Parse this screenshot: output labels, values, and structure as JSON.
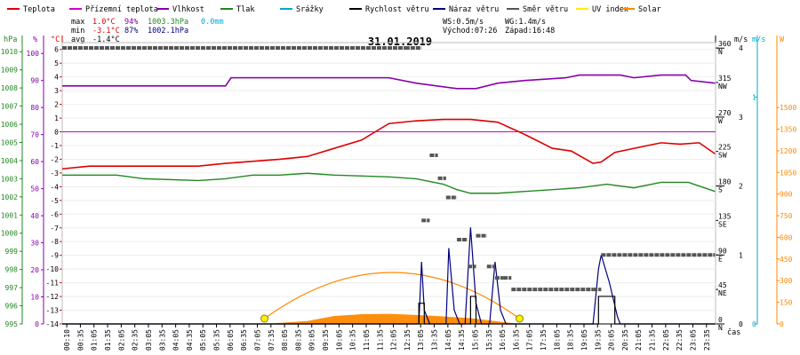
{
  "legend": [
    {
      "label": "Teplota",
      "color": "#dd0000"
    },
    {
      "label": "Přízemní teplota",
      "color": "#cc00cc"
    },
    {
      "label": "Vlhkost",
      "color": "#8800aa"
    },
    {
      "label": "Tlak",
      "color": "#228822"
    },
    {
      "label": "Srážky",
      "color": "#00aacc"
    },
    {
      "label": "Rychlost větru",
      "color": "#000000"
    },
    {
      "label": "Náraz větru",
      "color": "#000080"
    },
    {
      "label": "Směr větru",
      "color": "#555555"
    },
    {
      "label": "UV index",
      "color": "#ffee00"
    },
    {
      "label": "Solar",
      "color": "#ff8800"
    }
  ],
  "stats": {
    "max_label": "max",
    "max_temp": "1.0°C",
    "max_hum": "94%",
    "max_press": "1003.3hPa",
    "rain": "0.0mm",
    "min_label": "min",
    "min_temp": "-3.1°C",
    "min_hum": "87%",
    "min_press": "1002.1hPa",
    "avg_label": "avg",
    "avg_temp": "-1.4°C",
    "ws": "WS:0.5m/s",
    "wg": "WG:1.4m/s",
    "sunrise": "Východ:07:26",
    "sunset": "Západ:16:48"
  },
  "date": "31.01.2019",
  "axis_units": {
    "hpa": "hPa",
    "pct": "%",
    "deg": "°C",
    "ms1": "m/s",
    "ms2": "m/s",
    "w": "W",
    "cas": "čas"
  },
  "chart_data": {
    "type": "line",
    "title": "31.01.2019",
    "xlabel": "čas",
    "x_ticks": [
      "00:10",
      "00:35",
      "01:05",
      "01:35",
      "02:05",
      "02:35",
      "03:05",
      "03:35",
      "04:05",
      "04:35",
      "05:05",
      "05:35",
      "06:05",
      "06:35",
      "07:05",
      "07:35",
      "08:05",
      "08:35",
      "09:05",
      "09:35",
      "10:05",
      "10:35",
      "11:05",
      "11:35",
      "12:05",
      "12:35",
      "13:05",
      "13:35",
      "14:05",
      "14:35",
      "15:05",
      "15:35",
      "16:05",
      "16:35",
      "17:05",
      "17:35",
      "18:05",
      "18:35",
      "19:05",
      "19:35",
      "20:05",
      "20:35",
      "21:05",
      "21:35",
      "22:05",
      "22:35",
      "23:05",
      "23:35"
    ],
    "axes": {
      "pressure_hpa": {
        "ticks": [
          "995",
          "996",
          "997",
          "998",
          "999",
          "1000",
          "1001",
          "1002",
          "1003",
          "1004",
          "1005",
          "1006",
          "1007",
          "1008",
          "1009",
          "1010"
        ],
        "range": [
          995,
          1010.5
        ]
      },
      "humidity_pct": {
        "ticks": [
          "0",
          "10",
          "20",
          "30",
          "40",
          "50",
          "60",
          "70",
          "80",
          "90",
          "100"
        ],
        "range": [
          0,
          104
        ]
      },
      "temperature_c": {
        "ticks": [
          "-14",
          "-13",
          "-12",
          "-11",
          "-10",
          "-9",
          "-8",
          "-7",
          "-6",
          "-5",
          "-4",
          "-3",
          "-2",
          "-1",
          "0",
          "1",
          "2",
          "3",
          "4",
          "5",
          "6"
        ],
        "range": [
          -14,
          6.5
        ]
      },
      "wind_dir": {
        "ticks": [
          "0",
          "45",
          "90",
          "135",
          "180",
          "225",
          "270",
          "315",
          "360"
        ],
        "names": [
          "N",
          "NE",
          "E",
          "SE",
          "S",
          "SW",
          "W",
          "NW",
          "N"
        ],
        "range": [
          0,
          367
        ]
      },
      "wind_speed": {
        "ticks": [
          "0",
          "1",
          "2",
          "3",
          "4"
        ],
        "range": [
          0,
          4.08
        ]
      },
      "rain": {
        "ticks": [
          "0",
          "1"
        ],
        "range": [
          0,
          1.24
        ]
      },
      "solar_w": {
        "ticks": [
          "0",
          "150",
          "300",
          "450",
          "600",
          "750",
          "900",
          "1050",
          "1200",
          "1350",
          "1500"
        ],
        "range": [
          0,
          1950
        ]
      }
    },
    "series": [
      {
        "name": "Teplota",
        "color": "#dd0000",
        "axis": "temperature_c",
        "points": [
          [
            0,
            -2.7
          ],
          [
            1,
            -2.5
          ],
          [
            2.5,
            -2.5
          ],
          [
            5,
            -2.5
          ],
          [
            6,
            -2.3
          ],
          [
            8,
            -2.0
          ],
          [
            9,
            -1.8
          ],
          [
            10,
            -1.2
          ],
          [
            11,
            -0.6
          ],
          [
            12,
            0.6
          ],
          [
            13,
            0.8
          ],
          [
            14,
            0.9
          ],
          [
            15,
            0.9
          ],
          [
            16,
            0.7
          ],
          [
            17,
            -0.2
          ],
          [
            18,
            -1.2
          ],
          [
            18.7,
            -1.4
          ],
          [
            19.5,
            -2.3
          ],
          [
            19.8,
            -2.2
          ],
          [
            20.3,
            -1.5
          ],
          [
            21.5,
            -1.0
          ],
          [
            22,
            -0.8
          ],
          [
            22.7,
            -0.9
          ],
          [
            23.4,
            -0.8
          ],
          [
            23.98,
            -1.6
          ]
        ]
      },
      {
        "name": "Přízemní teplota",
        "color": "#cc00cc",
        "axis": "temperature_c",
        "points": [
          [
            0,
            0.0
          ],
          [
            23.98,
            0.0
          ]
        ]
      },
      {
        "name": "Vlhkost",
        "color": "#8800aa",
        "axis": "humidity_pct",
        "points": [
          [
            0,
            88
          ],
          [
            6,
            88
          ],
          [
            6.2,
            91
          ],
          [
            12,
            91
          ],
          [
            13,
            89
          ],
          [
            14.5,
            87
          ],
          [
            15.2,
            87
          ],
          [
            16,
            89
          ],
          [
            17,
            90
          ],
          [
            18.5,
            91
          ],
          [
            19,
            92
          ],
          [
            20.5,
            92
          ],
          [
            21,
            91
          ],
          [
            22,
            92
          ],
          [
            22.9,
            92
          ],
          [
            23.1,
            90
          ],
          [
            23.98,
            89
          ]
        ]
      },
      {
        "name": "Tlak",
        "color": "#228822",
        "axis": "pressure_hpa",
        "points": [
          [
            0,
            1003.2
          ],
          [
            2,
            1003.2
          ],
          [
            3,
            1003.0
          ],
          [
            5,
            1002.9
          ],
          [
            6,
            1003.0
          ],
          [
            7,
            1003.2
          ],
          [
            8,
            1003.2
          ],
          [
            9,
            1003.3
          ],
          [
            10,
            1003.2
          ],
          [
            12,
            1003.1
          ],
          [
            13,
            1003.0
          ],
          [
            14,
            1002.7
          ],
          [
            14.5,
            1002.4
          ],
          [
            15,
            1002.2
          ],
          [
            16,
            1002.2
          ],
          [
            17,
            1002.3
          ],
          [
            18,
            1002.4
          ],
          [
            19,
            1002.5
          ],
          [
            20,
            1002.7
          ],
          [
            21,
            1002.5
          ],
          [
            22,
            1002.8
          ],
          [
            23,
            1002.8
          ],
          [
            23.98,
            1002.3
          ]
        ]
      },
      {
        "name": "Solar",
        "color": "#ff8800",
        "axis": "solar_w",
        "points": [
          [
            7.43,
            0
          ],
          [
            9,
            20
          ],
          [
            10,
            55
          ],
          [
            11,
            68
          ],
          [
            12,
            70
          ],
          [
            13,
            62
          ],
          [
            14,
            52
          ],
          [
            15,
            40
          ],
          [
            16,
            18
          ],
          [
            16.8,
            0
          ]
        ]
      },
      {
        "name": "Směr větru",
        "color": "#555555",
        "axis": "wind_dir",
        "points": [
          [
            0,
            360
          ],
          [
            12.6,
            360
          ],
          [
            13.2,
            135
          ],
          [
            13.5,
            220
          ],
          [
            13.8,
            190
          ],
          [
            14.1,
            165
          ],
          [
            14.5,
            110
          ],
          [
            14.9,
            75
          ],
          [
            15.2,
            115
          ],
          [
            15.6,
            75
          ],
          [
            15.9,
            60
          ],
          [
            16.2,
            60
          ],
          [
            16.5,
            45
          ],
          [
            19.5,
            45
          ],
          [
            19.8,
            90
          ],
          [
            23.98,
            90
          ]
        ]
      },
      {
        "name": "Náraz větru",
        "color": "#000080",
        "axis": "wind_speed",
        "points": [
          [
            0,
            0
          ],
          [
            13.1,
            0
          ],
          [
            13.2,
            0.9
          ],
          [
            13.3,
            0.2
          ],
          [
            13.5,
            0.0
          ],
          [
            14.1,
            0
          ],
          [
            14.2,
            1.1
          ],
          [
            14.4,
            0.2
          ],
          [
            14.6,
            0
          ],
          [
            14.8,
            0
          ],
          [
            15,
            1.4
          ],
          [
            15.2,
            0.3
          ],
          [
            15.4,
            0
          ],
          [
            15.7,
            0
          ],
          [
            15.9,
            0.9
          ],
          [
            16.1,
            0.2
          ],
          [
            16.3,
            0
          ],
          [
            19.5,
            0
          ],
          [
            19.7,
            0.8
          ],
          [
            19.8,
            1.0
          ],
          [
            20.1,
            0.6
          ],
          [
            20.4,
            0.1
          ],
          [
            20.5,
            0
          ],
          [
            23.98,
            0
          ]
        ]
      },
      {
        "name": "Rychlost větru",
        "color": "#000000",
        "axis": "wind_speed",
        "points": [
          [
            0,
            0
          ],
          [
            13,
            0
          ],
          [
            13.1,
            0.3
          ],
          [
            13.3,
            0
          ],
          [
            14.9,
            0
          ],
          [
            15,
            0.4
          ],
          [
            15.2,
            0
          ],
          [
            19.6,
            0
          ],
          [
            19.7,
            0.4
          ],
          [
            20.2,
            0.4
          ],
          [
            20.3,
            0
          ],
          [
            23.98,
            0
          ]
        ]
      }
    ]
  }
}
